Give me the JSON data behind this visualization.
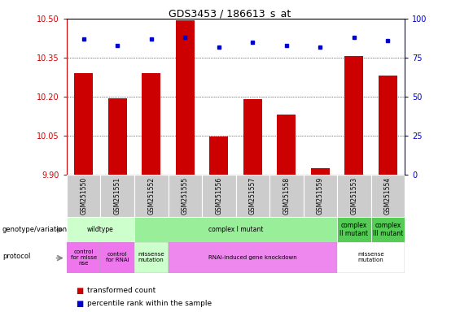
{
  "title": "GDS3453 / 186613_s_at",
  "samples": [
    "GSM251550",
    "GSM251551",
    "GSM251552",
    "GSM251555",
    "GSM251556",
    "GSM251557",
    "GSM251558",
    "GSM251559",
    "GSM251553",
    "GSM251554"
  ],
  "bar_values": [
    10.29,
    10.195,
    10.29,
    10.495,
    10.048,
    10.19,
    10.13,
    9.925,
    10.355,
    10.28
  ],
  "percentile_values": [
    87,
    83,
    87,
    88,
    82,
    85,
    83,
    82,
    88,
    86
  ],
  "ylim_left": [
    9.9,
    10.5
  ],
  "ylim_right": [
    0,
    100
  ],
  "yticks_left": [
    9.9,
    10.05,
    10.2,
    10.35,
    10.5
  ],
  "yticks_right": [
    0,
    25,
    50,
    75,
    100
  ],
  "bar_color": "#cc0000",
  "dot_color": "#0000cc",
  "geno_spans": [
    [
      0,
      2,
      "wildtype",
      "#ccffcc"
    ],
    [
      2,
      8,
      "complex I mutant",
      "#99ee99"
    ],
    [
      8,
      9,
      "complex\nII mutant",
      "#55cc55"
    ],
    [
      9,
      10,
      "complex\nIII mutant",
      "#55cc55"
    ]
  ],
  "proto_spans": [
    [
      0,
      1,
      "control\nfor misse\nnse",
      "#ee77ee"
    ],
    [
      1,
      2,
      "control\nfor RNAi",
      "#ee77ee"
    ],
    [
      2,
      3,
      "missense\nmutation",
      "#ccffcc"
    ],
    [
      3,
      8,
      "RNAi-induced gene knockdown",
      "#ee88ee"
    ],
    [
      8,
      10,
      "missense\nmutation",
      "#ffffff"
    ]
  ],
  "tick_color_left": "#cc0000",
  "tick_color_right": "#0000cc",
  "sample_box_color": "#cccccc"
}
